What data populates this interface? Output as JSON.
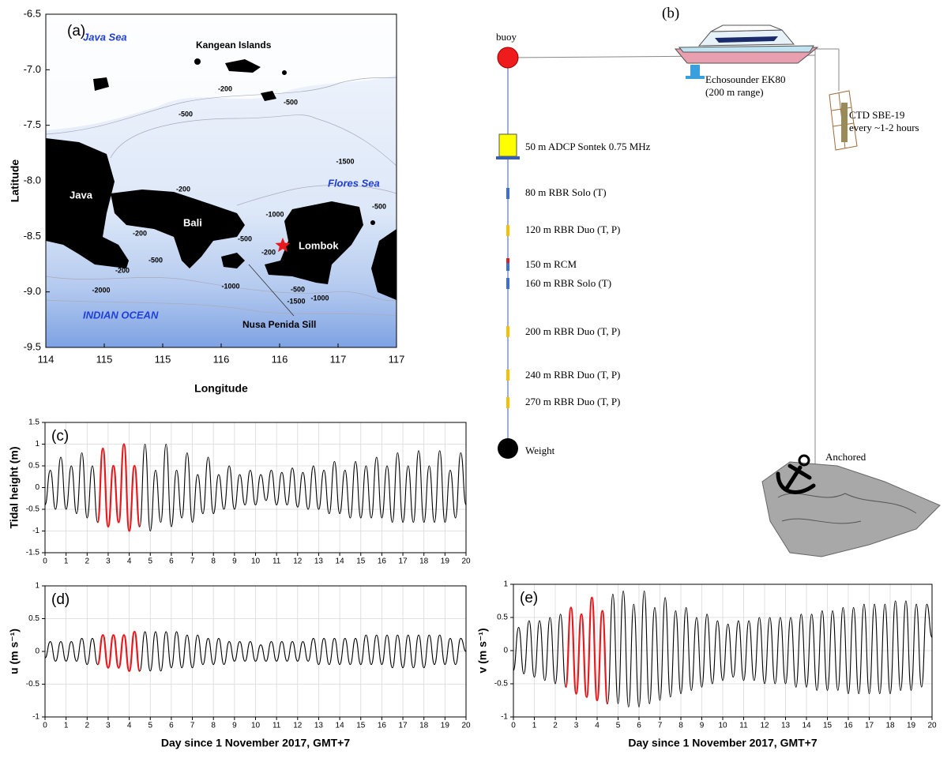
{
  "map": {
    "panel_label": "(a)",
    "labels": [
      "Java Sea",
      "Kangean Islands",
      "Flores Sea",
      "Java",
      "Bali",
      "Lombok",
      "INDIAN OCEAN",
      "Nusa Penida Sill"
    ],
    "contour_labels": [
      "-200",
      "-500",
      "-500",
      "-1500",
      "-200",
      "-500",
      "-1000",
      "-200",
      "-500",
      "-200",
      "-500",
      "-200",
      "-1000",
      "-2000",
      "-500",
      "-1500",
      "-1000"
    ],
    "xtick_labels": [
      "114",
      "115",
      "115",
      "116",
      "116",
      "117",
      "117"
    ],
    "ytick_labels": [
      "-6.5",
      "-7.0",
      "-7.5",
      "-8.0",
      "-8.5",
      "-9.0",
      "-9.5"
    ],
    "xlabel": "Longitude",
    "ylabel": "Latitude"
  },
  "diagram": {
    "panel_label": "(b)",
    "buoy": "buoy",
    "echosounder": [
      "Echosounder EK80",
      "(200 m range)"
    ],
    "ctd": [
      "CTD SBE-19",
      "every ~1-2 hours"
    ],
    "instruments": [
      "50 m ADCP  Sontek 0.75 MHz",
      "80 m RBR Solo (T)",
      "120 m RBR Duo (T, P)",
      "150 m RCM",
      "160 m RBR Solo (T)",
      "200 m RBR Duo (T, P)",
      "240 m RBR Duo (T, P)",
      "270 m RBR Duo (T, P)"
    ],
    "weight": "Weight",
    "anchor": "Anchored"
  },
  "chart_data": [
    {
      "type": "line",
      "panel_label": "(c)",
      "ylabel": "Tidal height (m)",
      "xlim": [
        0,
        20
      ],
      "ylim": [
        -1.5,
        1.5
      ],
      "xticks": [
        0,
        1,
        2,
        3,
        4,
        5,
        6,
        7,
        8,
        9,
        10,
        11,
        12,
        13,
        14,
        15,
        16,
        17,
        18,
        19,
        20
      ],
      "yticks": [
        -1.5,
        -1,
        -0.5,
        0,
        0.5,
        1,
        1.5
      ],
      "grid": true,
      "series": [
        {
          "color": "#000000",
          "x": [
            0,
            0.25,
            0.5,
            0.75,
            1,
            1.25,
            1.5,
            1.75,
            2,
            2.25,
            2.5,
            2.75,
            3,
            3.25,
            3.5,
            3.75,
            4,
            4.25,
            4.5,
            4.75,
            5,
            5.25,
            5.5,
            5.75,
            6,
            6.25,
            6.5,
            6.75,
            7,
            7.25,
            7.5,
            7.75,
            8,
            8.25,
            8.5,
            8.75,
            9,
            9.25,
            9.5,
            9.75,
            10,
            10.25,
            10.5,
            10.75,
            11,
            11.25,
            11.5,
            11.75,
            12,
            12.25,
            12.5,
            12.75,
            13,
            13.25,
            13.5,
            13.75,
            14,
            14.25,
            14.5,
            14.75,
            15,
            15.25,
            15.5,
            15.75,
            16,
            16.25,
            16.5,
            16.75,
            17,
            17.25,
            17.5,
            17.75,
            18,
            18.25,
            18.5,
            18.75,
            19,
            19.25,
            19.5,
            19.75,
            20
          ],
          "values": [
            -0.4,
            0.4,
            -0.5,
            0.7,
            -0.5,
            0.5,
            -0.6,
            0.8,
            -0.7,
            0.5,
            -0.8,
            0.9,
            -0.9,
            0.5,
            -0.8,
            1.0,
            -1.0,
            0.5,
            -0.9,
            1.0,
            -1.0,
            0.4,
            -0.8,
            1.0,
            -0.9,
            0.4,
            -0.7,
            0.8,
            -0.8,
            0.3,
            -0.6,
            0.7,
            -0.6,
            0.3,
            -0.5,
            0.5,
            -0.5,
            0.3,
            -0.4,
            0.4,
            -0.4,
            0.3,
            -0.3,
            0.4,
            -0.4,
            0.35,
            -0.4,
            0.45,
            -0.45,
            0.35,
            -0.5,
            0.5,
            -0.5,
            0.4,
            -0.6,
            0.6,
            -0.6,
            0.4,
            -0.7,
            0.6,
            -0.7,
            0.5,
            -0.7,
            0.7,
            -0.7,
            0.5,
            -0.8,
            0.8,
            -0.8,
            0.5,
            -0.8,
            0.85,
            -0.8,
            0.5,
            -0.8,
            0.85,
            -0.8,
            0.4,
            -0.7,
            0.8,
            -0.4
          ]
        },
        {
          "color": "#e8191d",
          "x": [
            2.5,
            2.75,
            3,
            3.25,
            3.5,
            3.75,
            4,
            4.25,
            4.5
          ],
          "values": [
            -0.8,
            0.9,
            -0.9,
            0.5,
            -0.8,
            1.0,
            -1.0,
            0.5,
            -0.9
          ]
        }
      ]
    },
    {
      "type": "line",
      "panel_label": "(d)",
      "ylabel": "u (m s⁻¹)",
      "xlabel": "Day since 1 November 2017, GMT+7",
      "xlim": [
        0,
        20
      ],
      "ylim": [
        -1,
        1
      ],
      "xticks": [
        0,
        1,
        2,
        3,
        4,
        5,
        6,
        7,
        8,
        9,
        10,
        11,
        12,
        13,
        14,
        15,
        16,
        17,
        18,
        19,
        20
      ],
      "yticks": [
        -1,
        -0.5,
        0,
        0.5,
        1
      ],
      "grid": true,
      "series": [
        {
          "color": "#000000",
          "x": [
            0,
            0.25,
            0.5,
            0.75,
            1,
            1.25,
            1.5,
            1.75,
            2,
            2.25,
            2.5,
            2.75,
            3,
            3.25,
            3.5,
            3.75,
            4,
            4.25,
            4.5,
            4.75,
            5,
            5.25,
            5.5,
            5.75,
            6,
            6.25,
            6.5,
            6.75,
            7,
            7.25,
            7.5,
            7.75,
            8,
            8.25,
            8.5,
            8.75,
            9,
            9.25,
            9.5,
            9.75,
            10,
            10.25,
            10.5,
            10.75,
            11,
            11.25,
            11.5,
            11.75,
            12,
            12.25,
            12.5,
            12.75,
            13,
            13.25,
            13.5,
            13.75,
            14,
            14.25,
            14.5,
            14.75,
            15,
            15.25,
            15.5,
            15.75,
            16,
            16.25,
            16.5,
            16.75,
            17,
            17.25,
            17.5,
            17.75,
            18,
            18.25,
            18.5,
            18.75,
            19,
            19.25,
            19.5,
            19.75,
            20
          ],
          "values": [
            -0.1,
            0.15,
            -0.15,
            0.15,
            -0.15,
            0.15,
            -0.15,
            0.2,
            -0.2,
            0.2,
            -0.2,
            0.25,
            -0.25,
            0.25,
            -0.25,
            0.25,
            -0.3,
            0.3,
            -0.3,
            0.3,
            -0.3,
            0.3,
            -0.3,
            0.3,
            -0.25,
            0.3,
            -0.25,
            0.25,
            -0.25,
            0.25,
            -0.2,
            0.2,
            -0.2,
            0.2,
            -0.2,
            0.15,
            -0.15,
            0.15,
            -0.15,
            0.15,
            -0.15,
            0.1,
            -0.15,
            0.15,
            -0.15,
            0.15,
            -0.15,
            0.15,
            -0.15,
            0.15,
            -0.15,
            0.2,
            -0.2,
            0.2,
            -0.2,
            0.2,
            -0.2,
            0.2,
            -0.2,
            0.2,
            -0.2,
            0.25,
            -0.2,
            0.25,
            -0.2,
            0.25,
            -0.25,
            0.25,
            -0.25,
            0.25,
            -0.25,
            0.25,
            -0.25,
            0.25,
            -0.2,
            0.25,
            -0.2,
            0.2,
            -0.2,
            0.2,
            0.0
          ]
        },
        {
          "color": "#e8191d",
          "x": [
            2.5,
            2.75,
            3,
            3.25,
            3.5,
            3.75,
            4,
            4.25,
            4.5
          ],
          "values": [
            -0.2,
            0.25,
            -0.25,
            0.25,
            -0.25,
            0.25,
            -0.3,
            0.3,
            -0.3
          ]
        }
      ]
    },
    {
      "type": "line",
      "panel_label": "(e)",
      "ylabel": "v (m s⁻¹)",
      "xlabel": "Day since 1 November 2017, GMT+7",
      "xlim": [
        0,
        20
      ],
      "ylim": [
        -1,
        1
      ],
      "xticks": [
        0,
        1,
        2,
        3,
        4,
        5,
        6,
        7,
        8,
        9,
        10,
        11,
        12,
        13,
        14,
        15,
        16,
        17,
        18,
        19,
        20
      ],
      "yticks": [
        -1,
        -0.5,
        0,
        0.5,
        1
      ],
      "grid": true,
      "series": [
        {
          "color": "#000000",
          "x": [
            0,
            0.25,
            0.5,
            0.75,
            1,
            1.25,
            1.5,
            1.75,
            2,
            2.25,
            2.5,
            2.75,
            3,
            3.25,
            3.5,
            3.75,
            4,
            4.25,
            4.5,
            4.75,
            5,
            5.25,
            5.5,
            5.75,
            6,
            6.25,
            6.5,
            6.75,
            7,
            7.25,
            7.5,
            7.75,
            8,
            8.25,
            8.5,
            8.75,
            9,
            9.25,
            9.5,
            9.75,
            10,
            10.25,
            10.5,
            10.75,
            11,
            11.25,
            11.5,
            11.75,
            12,
            12.25,
            12.5,
            12.75,
            13,
            13.25,
            13.5,
            13.75,
            14,
            14.25,
            14.5,
            14.75,
            15,
            15.25,
            15.5,
            15.75,
            16,
            16.25,
            16.5,
            16.75,
            17,
            17.25,
            17.5,
            17.75,
            18,
            18.25,
            18.5,
            18.75,
            19,
            19.25,
            19.5,
            19.75,
            20
          ],
          "values": [
            -0.3,
            0.35,
            -0.35,
            0.45,
            -0.4,
            0.45,
            -0.45,
            0.5,
            -0.5,
            0.55,
            -0.55,
            0.65,
            -0.65,
            0.55,
            -0.7,
            0.8,
            -0.75,
            0.6,
            -0.8,
            0.85,
            -0.8,
            0.9,
            -0.85,
            0.7,
            -0.85,
            0.9,
            -0.8,
            0.65,
            -0.75,
            0.8,
            -0.7,
            0.6,
            -0.65,
            0.65,
            -0.6,
            0.5,
            -0.55,
            0.55,
            -0.5,
            0.45,
            -0.45,
            0.4,
            -0.4,
            0.45,
            -0.45,
            0.45,
            -0.45,
            0.5,
            -0.5,
            0.5,
            -0.5,
            0.5,
            -0.5,
            0.5,
            -0.55,
            0.55,
            -0.55,
            0.55,
            -0.6,
            0.6,
            -0.6,
            0.6,
            -0.6,
            0.65,
            -0.65,
            0.65,
            -0.65,
            0.7,
            -0.65,
            0.7,
            -0.65,
            0.7,
            -0.65,
            0.75,
            -0.6,
            0.75,
            -0.6,
            0.7,
            -0.55,
            0.7,
            0.2
          ]
        },
        {
          "color": "#e8191d",
          "x": [
            2.5,
            2.75,
            3,
            3.25,
            3.5,
            3.75,
            4,
            4.25,
            4.5
          ],
          "values": [
            -0.55,
            0.65,
            -0.65,
            0.55,
            -0.7,
            0.8,
            -0.75,
            0.6,
            -0.8
          ]
        }
      ]
    }
  ]
}
